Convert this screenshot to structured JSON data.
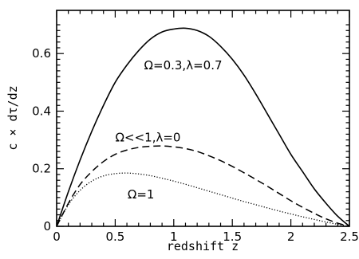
{
  "chart_data": {
    "type": "line",
    "xlabel": "redshift z",
    "ylabel": "c × dτ/dz",
    "xlim": [
      0,
      2.5
    ],
    "ylim": [
      0,
      0.75
    ],
    "x_ticks": [
      {
        "value": 0,
        "label": "0"
      },
      {
        "value": 0.5,
        "label": "0.5"
      },
      {
        "value": 1,
        "label": "1"
      },
      {
        "value": 1.5,
        "label": "1.5"
      },
      {
        "value": 2,
        "label": "2"
      },
      {
        "value": 2.5,
        "label": "2.5"
      }
    ],
    "y_ticks": [
      {
        "value": 0,
        "label": "0"
      },
      {
        "value": 0.2,
        "label": "0.2"
      },
      {
        "value": 0.4,
        "label": "0.4"
      },
      {
        "value": 0.6,
        "label": "0.6"
      }
    ],
    "grid": false,
    "series": [
      {
        "id": "omega03",
        "style": "solid",
        "x": [
          0,
          0.1,
          0.2,
          0.3,
          0.4,
          0.5,
          0.6,
          0.7,
          0.8,
          0.9,
          1.0,
          1.1,
          1.2,
          1.3,
          1.4,
          1.5,
          1.6,
          1.7,
          1.8,
          1.9,
          2.0,
          2.1,
          2.2,
          2.3,
          2.4,
          2.5
        ],
        "y": [
          0,
          0.12,
          0.23,
          0.33,
          0.42,
          0.5,
          0.56,
          0.61,
          0.65,
          0.675,
          0.685,
          0.688,
          0.68,
          0.66,
          0.625,
          0.58,
          0.525,
          0.46,
          0.39,
          0.32,
          0.25,
          0.19,
          0.13,
          0.08,
          0.035,
          0
        ]
      },
      {
        "id": "omega_low",
        "style": "dashed",
        "x": [
          0,
          0.1,
          0.2,
          0.3,
          0.4,
          0.5,
          0.6,
          0.7,
          0.8,
          0.9,
          1.0,
          1.1,
          1.2,
          1.3,
          1.4,
          1.5,
          1.6,
          1.7,
          1.8,
          1.9,
          2.0,
          2.1,
          2.2,
          2.3,
          2.4,
          2.5
        ],
        "y": [
          0,
          0.08,
          0.145,
          0.19,
          0.225,
          0.25,
          0.265,
          0.274,
          0.278,
          0.279,
          0.276,
          0.27,
          0.26,
          0.245,
          0.228,
          0.208,
          0.186,
          0.163,
          0.139,
          0.114,
          0.089,
          0.066,
          0.045,
          0.026,
          0.011,
          0
        ]
      },
      {
        "id": "omega1",
        "style": "dotted",
        "x": [
          0,
          0.1,
          0.2,
          0.3,
          0.4,
          0.5,
          0.6,
          0.7,
          0.8,
          0.9,
          1.0,
          1.1,
          1.2,
          1.3,
          1.4,
          1.5,
          1.6,
          1.7,
          1.8,
          1.9,
          2.0,
          2.1,
          2.2,
          2.3,
          2.4,
          2.5
        ],
        "y": [
          0,
          0.075,
          0.125,
          0.157,
          0.175,
          0.183,
          0.185,
          0.182,
          0.176,
          0.167,
          0.157,
          0.146,
          0.134,
          0.122,
          0.11,
          0.098,
          0.086,
          0.075,
          0.064,
          0.053,
          0.043,
          0.033,
          0.024,
          0.015,
          0.007,
          0
        ]
      }
    ],
    "annotations": [
      {
        "id": "omega03",
        "text": "Ω=0.3,λ=0.7",
        "x": 1.08,
        "y": 0.545
      },
      {
        "id": "omega_low",
        "text": "Ω<<1,λ=0",
        "x": 0.78,
        "y": 0.295
      },
      {
        "id": "omega1",
        "text": "Ω=1",
        "x": 0.72,
        "y": 0.097
      }
    ]
  }
}
